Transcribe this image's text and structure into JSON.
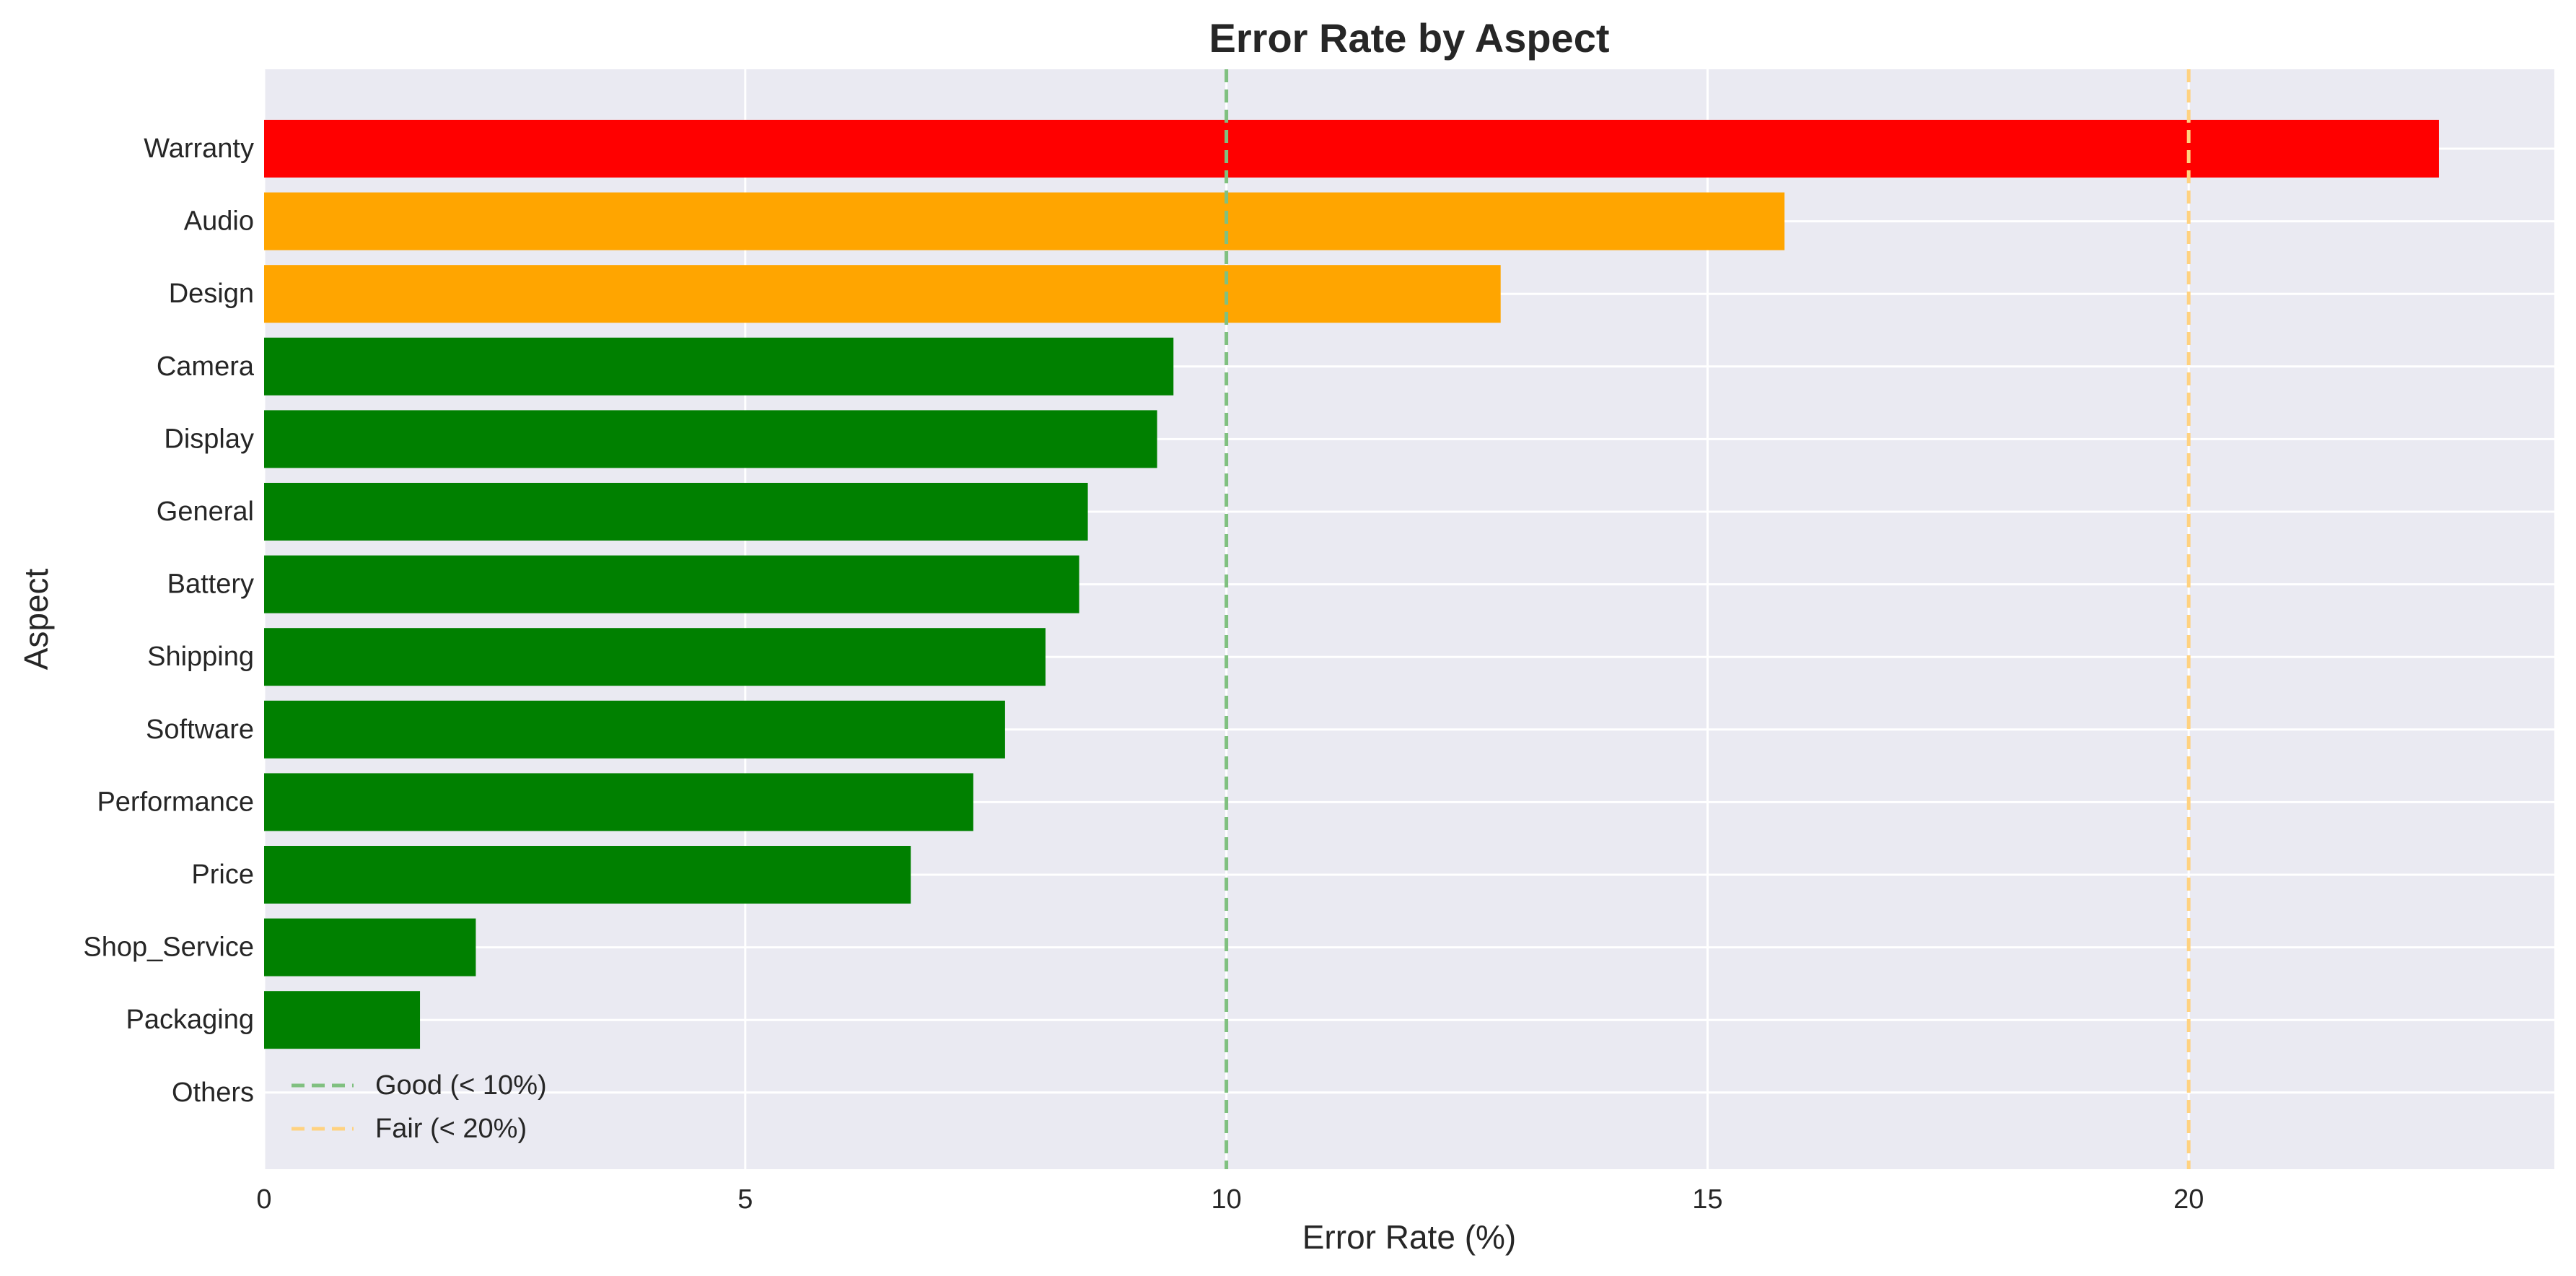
{
  "chart_data": {
    "type": "bar",
    "orientation": "horizontal",
    "title": "Error Rate by Aspect",
    "xlabel": "Error Rate (%)",
    "ylabel": "Aspect",
    "xlim": [
      0,
      23.8
    ],
    "xticks": [
      0,
      5,
      10,
      15,
      20
    ],
    "grid": true,
    "legend_position": "lower-left",
    "categories": [
      "Warranty",
      "Audio",
      "Design",
      "Camera",
      "Display",
      "General",
      "Battery",
      "Shipping",
      "Software",
      "Performance",
      "Price",
      "Shop_Service",
      "Packaging",
      "Others"
    ],
    "values": [
      22.6,
      15.8,
      12.85,
      9.45,
      9.28,
      8.56,
      8.47,
      8.12,
      7.7,
      7.37,
      6.72,
      2.2,
      1.62,
      0
    ],
    "bar_colors": [
      "#ff0000",
      "#ffa500",
      "#ffa500",
      "#008000",
      "#008000",
      "#008000",
      "#008000",
      "#008000",
      "#008000",
      "#008000",
      "#008000",
      "#008000",
      "#008000",
      "#008000"
    ],
    "reference_lines": [
      {
        "value": 10,
        "label": "Good (< 10%)",
        "color": "#80c080",
        "style": "dashed"
      },
      {
        "value": 20,
        "label": "Fair (< 20%)",
        "color": "#ffd280",
        "style": "dashed"
      }
    ],
    "background_color": "#eaeaf2",
    "grid_color": "#ffffff"
  }
}
